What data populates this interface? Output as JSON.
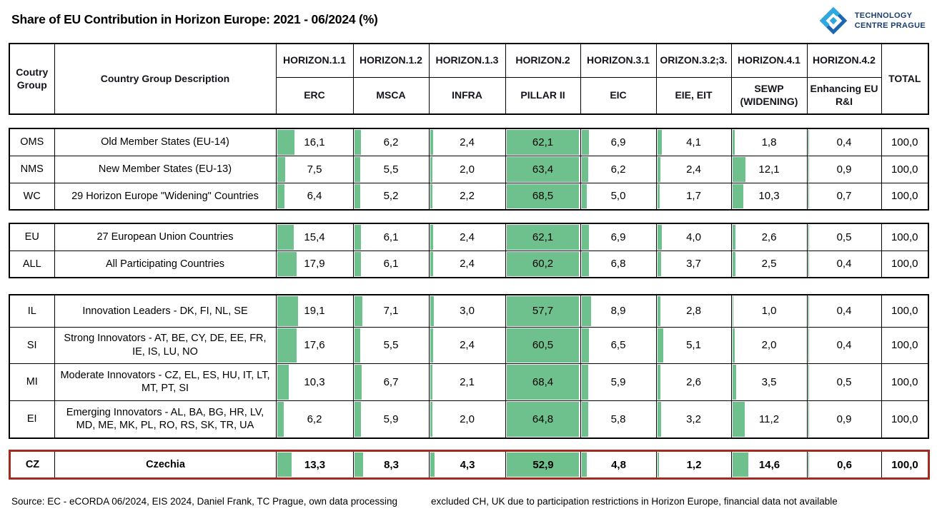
{
  "title": "Share of EU Contribution in Horizon Europe: 2021 - 06/2024 (%)",
  "logo": {
    "line1": "TECHNOLOGY",
    "line2": "CENTRE PRAGUE"
  },
  "chart_data": {
    "type": "table",
    "title": "Share of EU Contribution in Horizon Europe: 2021 - 06/2024 (%)",
    "unit": "%",
    "bar_scale_max": 68.5,
    "header": {
      "group": "Coutry Group",
      "description": "Country Group Description",
      "total": "TOTAL"
    },
    "columns": [
      {
        "program": "HORIZON.1.1",
        "label": "ERC"
      },
      {
        "program": "HORIZON.1.2",
        "label": "MSCA"
      },
      {
        "program": "HORIZON.1.3",
        "label": "INFRA"
      },
      {
        "program": "HORIZON.2",
        "label": "PILLAR II"
      },
      {
        "program": "HORIZON.3.1",
        "label": "EIC"
      },
      {
        "program": "ORIZON.3.2;3.",
        "label": "EIE, EIT"
      },
      {
        "program": "HORIZON.4.1",
        "label": "SEWP (WIDENING)"
      },
      {
        "program": "HORIZON.4.2",
        "label": "Enhancing EU R&I"
      }
    ],
    "blocks": [
      {
        "rows": [
          {
            "code": "OMS",
            "description": "Old Member States (EU-14)",
            "values": [
              "16,1",
              "6,2",
              "2,4",
              "62,1",
              "6,9",
              "4,1",
              "1,8",
              "0,4"
            ],
            "total": "100,0"
          },
          {
            "code": "NMS",
            "description": "New Member States (EU-13)",
            "values": [
              "7,5",
              "5,5",
              "2,0",
              "63,4",
              "6,2",
              "2,4",
              "12,1",
              "0,9"
            ],
            "total": "100,0"
          },
          {
            "code": "WC",
            "description": "29  Horizon Europe \"Widening\" Countries",
            "values": [
              "6,4",
              "5,2",
              "2,2",
              "68,5",
              "5,0",
              "1,7",
              "10,3",
              "0,7"
            ],
            "total": "100,0"
          }
        ]
      },
      {
        "rows": [
          {
            "code": "EU",
            "description": "27 European Union Countries",
            "values": [
              "15,4",
              "6,1",
              "2,4",
              "62,1",
              "6,9",
              "4,0",
              "2,6",
              "0,5"
            ],
            "total": "100,0"
          },
          {
            "code": "ALL",
            "description": "All Participating Countries",
            "values": [
              "17,9",
              "6,1",
              "2,4",
              "60,2",
              "6,8",
              "3,7",
              "2,5",
              "0,4"
            ],
            "total": "100,0"
          }
        ]
      },
      {
        "rows": [
          {
            "code": "IL",
            "description": "Innovation Leaders - DK, FI, NL, SE",
            "values": [
              "19,1",
              "7,1",
              "3,0",
              "57,7",
              "8,9",
              "2,8",
              "1,0",
              "0,4"
            ],
            "total": "100,0"
          },
          {
            "code": "SI",
            "description": "Strong Innovators - AT, BE, CY, DE, EE, FR, IE, IS, LU, NO",
            "values": [
              "17,6",
              "5,5",
              "2,4",
              "60,5",
              "6,5",
              "5,1",
              "2,0",
              "0,4"
            ],
            "total": "100,0"
          },
          {
            "code": "MI",
            "description": "Moderate Innovators - CZ, EL, ES, HU, IT, LT, MT, PT, SI",
            "values": [
              "10,3",
              "6,7",
              "2,1",
              "68,4",
              "5,9",
              "2,6",
              "3,5",
              "0,5"
            ],
            "total": "100,0"
          },
          {
            "code": "EI",
            "description": "Emerging Innovators - AL, BA, BG, HR, LV, MD, ME, MK, PL, RO, RS, SK, TR, UA",
            "values": [
              "6,2",
              "5,9",
              "2,0",
              "64,8",
              "5,8",
              "3,2",
              "11,2",
              "0,9"
            ],
            "total": "100,0"
          }
        ]
      }
    ],
    "highlight_row": {
      "code": "CZ",
      "description": "Czechia",
      "values": [
        "13,3",
        "8,3",
        "4,3",
        "52,9",
        "4,8",
        "1,2",
        "14,6",
        "0,6"
      ],
      "total": "100,0"
    }
  },
  "footer": {
    "left": "Source: EC - eCORDA 06/2024, EIS 2024, Daniel Frank, TC Prague, own data processing",
    "right": "excluded CH, UK due to participation restrictions in Horizon Europe, financial data not available"
  },
  "colors": {
    "bar": "#6EC18D",
    "highlight_border": "#A02B20",
    "logo_light": "#2FA8DF",
    "logo_dark": "#1E66B0",
    "logo_text": "#1B3E6F",
    "border": "#000000"
  }
}
